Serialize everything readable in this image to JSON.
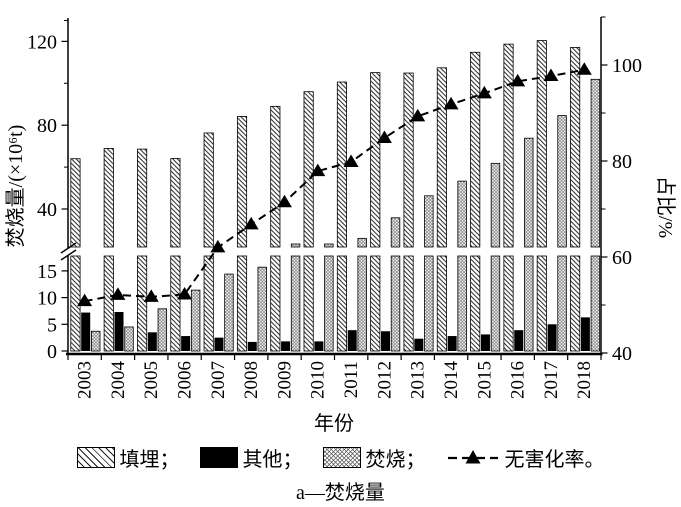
{
  "chart_data": {
    "type": "bar",
    "title": "",
    "caption": "a—焚烧量",
    "xlabel": "年份",
    "ylabel_left": "焚烧量/(×10⁶t)",
    "ylabel_right": "占比/%",
    "categories": [
      "2003",
      "2004",
      "2005",
      "2006",
      "2007",
      "2008",
      "2009",
      "2010",
      "2011",
      "2012",
      "2013",
      "2014",
      "2015",
      "2016",
      "2017",
      "2018"
    ],
    "series": [
      {
        "name": "填埋",
        "type": "bar",
        "axis": "left",
        "pattern": "diagonal-hatch",
        "values": [
          64.0,
          68.9,
          68.6,
          64.1,
          76.3,
          84.2,
          89.0,
          96.0,
          100.6,
          105.1,
          104.9,
          107.4,
          114.8,
          118.7,
          120.4,
          117.1
        ]
      },
      {
        "name": "其他",
        "type": "bar",
        "axis": "left",
        "pattern": "solid-black",
        "values": [
          7.2,
          7.3,
          3.5,
          2.8,
          2.5,
          1.7,
          1.8,
          1.8,
          3.9,
          3.7,
          2.3,
          2.8,
          3.1,
          3.9,
          5.0,
          6.3
        ]
      },
      {
        "name": "焚烧",
        "type": "bar",
        "axis": "left",
        "pattern": "crosshatch",
        "values": [
          3.7,
          4.5,
          7.9,
          11.4,
          14.4,
          15.7,
          20.2,
          23.2,
          26.0,
          35.8,
          46.3,
          53.3,
          61.8,
          73.8,
          84.6,
          101.9
        ]
      },
      {
        "name": "无害化率",
        "type": "line",
        "axis": "right",
        "marker": "triangle",
        "line_style": "dashed",
        "values": [
          50.8,
          52.1,
          51.7,
          52.2,
          62.0,
          66.8,
          71.4,
          77.9,
          79.8,
          84.8,
          89.3,
          91.8,
          94.1,
          96.6,
          97.7,
          99.0
        ]
      }
    ],
    "left_axis": {
      "broken": true,
      "lower_ticks": [
        0,
        5,
        10,
        15
      ],
      "upper_ticks": [
        40,
        80,
        120
      ],
      "upper_minor_ticks": [
        60,
        100,
        130
      ]
    },
    "right_axis": {
      "ticks": [
        40,
        60,
        80,
        100
      ],
      "minor_ticks": [
        50,
        70,
        90,
        110
      ],
      "range": [
        40,
        110
      ]
    },
    "grid": "off",
    "legend_position": "bottom"
  },
  "legend": {
    "items": [
      {
        "label": "填埋；",
        "swatch": "diagonal-hatch"
      },
      {
        "label": "其他；",
        "swatch": "solid-black"
      },
      {
        "label": "焚烧；",
        "swatch": "crosshatch"
      },
      {
        "label": "无害化率。",
        "swatch": "dashed-line-triangle"
      }
    ]
  },
  "colors": {
    "ink": "#000000",
    "background": "#ffffff",
    "crosshatch_tone": "#555555"
  }
}
